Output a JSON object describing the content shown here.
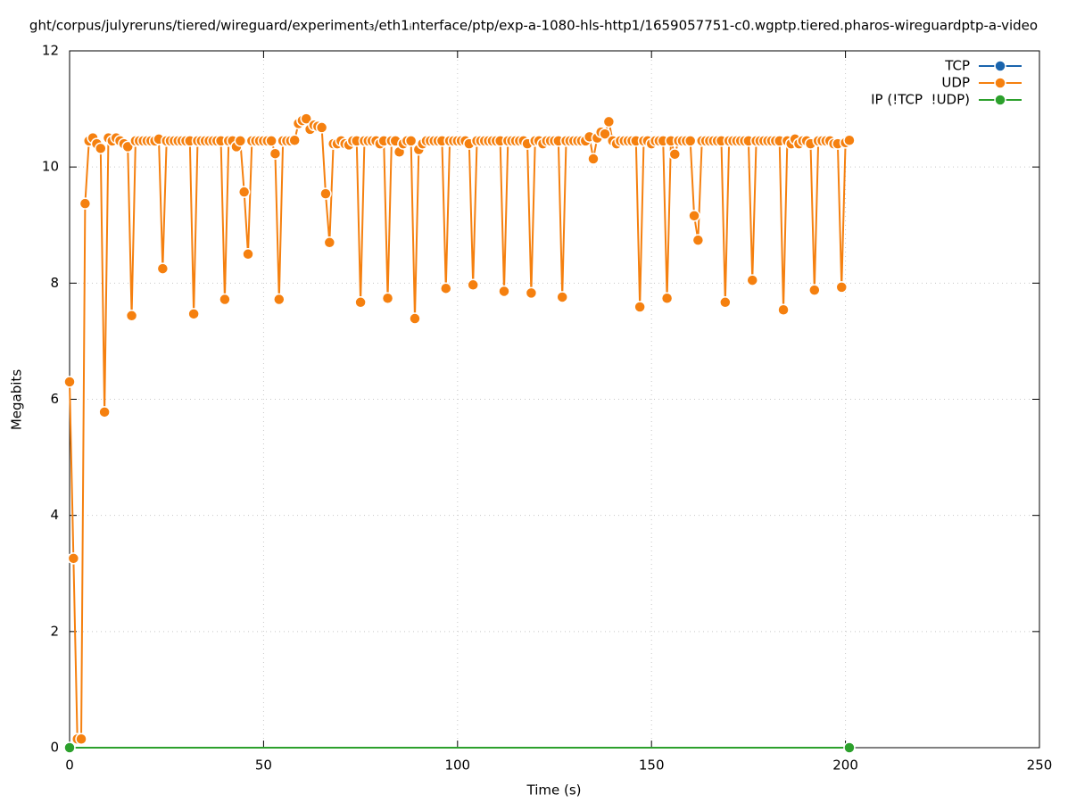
{
  "chart_data": {
    "type": "line",
    "title": "ght/corpus/julyreruns/tiered/wireguard/experiment₃/eth1ᵢnterface/ptp/exp-a-1080-hls-http1/1659057751-c0.wgptp.tiered.pharos-wireguardptp-a-video",
    "x_label": "Time (s)",
    "y_label": "Megabits",
    "xlim": [
      0,
      250
    ],
    "xticks": [
      0,
      50,
      100,
      150,
      200,
      250
    ],
    "ylim": [
      0,
      12
    ],
    "yticks": [
      0,
      2,
      4,
      6,
      8,
      10,
      12
    ],
    "grid": true,
    "legend": "top-right",
    "series": [
      {
        "name": "TCP",
        "color": "#1a64ad",
        "x": [],
        "values": []
      },
      {
        "name": "UDP",
        "color": "#f5800f",
        "x": [
          0,
          1,
          2,
          3,
          4,
          5,
          6,
          7,
          8,
          9,
          10,
          11,
          12,
          13,
          14,
          15,
          16,
          17,
          18,
          19,
          20,
          21,
          22,
          23,
          24,
          25,
          26,
          27,
          28,
          29,
          30,
          31,
          32,
          33,
          34,
          35,
          36,
          37,
          38,
          39,
          40,
          41,
          42,
          43,
          44,
          45,
          46,
          47,
          48,
          49,
          50,
          51,
          52,
          53,
          54,
          55,
          56,
          57,
          58,
          59,
          60,
          61,
          62,
          63,
          64,
          65,
          66,
          67,
          68,
          69,
          70,
          71,
          72,
          73,
          74,
          75,
          76,
          77,
          78,
          79,
          80,
          81,
          82,
          83,
          84,
          85,
          86,
          87,
          88,
          89,
          90,
          91,
          92,
          93,
          94,
          95,
          96,
          97,
          98,
          99,
          100,
          101,
          102,
          103,
          104,
          105,
          106,
          107,
          108,
          109,
          110,
          111,
          112,
          113,
          114,
          115,
          116,
          117,
          118,
          119,
          120,
          121,
          122,
          123,
          124,
          125,
          126,
          127,
          128,
          129,
          130,
          131,
          132,
          133,
          134,
          135,
          136,
          137,
          138,
          139,
          140,
          141,
          142,
          143,
          144,
          145,
          146,
          147,
          148,
          149,
          150,
          151,
          152,
          153,
          154,
          155,
          156,
          157,
          158,
          159,
          160,
          161,
          162,
          163,
          164,
          165,
          166,
          167,
          168,
          169,
          170,
          171,
          172,
          173,
          174,
          175,
          176,
          177,
          178,
          179,
          180,
          181,
          182,
          183,
          184,
          185,
          186,
          187,
          188,
          189,
          190,
          191,
          192,
          193,
          194,
          195,
          196,
          197,
          198,
          199,
          200,
          201
        ],
        "values": [
          6.3,
          3.26,
          0.15,
          0.15,
          9.37,
          10.45,
          10.5,
          10.4,
          10.32,
          5.78,
          10.5,
          10.45,
          10.5,
          10.45,
          10.4,
          10.35,
          7.44,
          10.45,
          10.45,
          10.45,
          10.45,
          10.45,
          10.45,
          10.48,
          8.25,
          10.45,
          10.45,
          10.45,
          10.45,
          10.45,
          10.45,
          10.45,
          7.47,
          10.45,
          10.45,
          10.45,
          10.45,
          10.45,
          10.45,
          10.45,
          7.72,
          10.45,
          10.45,
          10.35,
          10.45,
          9.57,
          8.5,
          10.45,
          10.45,
          10.45,
          10.45,
          10.45,
          10.45,
          10.23,
          7.72,
          10.45,
          10.45,
          10.45,
          10.46,
          10.75,
          10.8,
          10.83,
          10.65,
          10.72,
          10.7,
          10.68,
          9.54,
          8.7,
          10.4,
          10.4,
          10.45,
          10.4,
          10.38,
          10.45,
          10.45,
          7.67,
          10.45,
          10.45,
          10.45,
          10.45,
          10.4,
          10.45,
          7.74,
          10.45,
          10.45,
          10.26,
          10.4,
          10.45,
          10.45,
          7.39,
          10.3,
          10.4,
          10.45,
          10.45,
          10.45,
          10.45,
          10.45,
          7.91,
          10.45,
          10.45,
          10.45,
          10.45,
          10.45,
          10.4,
          7.97,
          10.45,
          10.45,
          10.45,
          10.45,
          10.45,
          10.45,
          10.45,
          7.86,
          10.45,
          10.45,
          10.45,
          10.45,
          10.45,
          10.4,
          7.83,
          10.45,
          10.45,
          10.4,
          10.45,
          10.45,
          10.45,
          10.45,
          7.76,
          10.45,
          10.45,
          10.45,
          10.45,
          10.45,
          10.45,
          10.52,
          10.14,
          10.5,
          10.6,
          10.57,
          10.78,
          10.45,
          10.4,
          10.45,
          10.45,
          10.45,
          10.45,
          10.45,
          7.59,
          10.45,
          10.45,
          10.4,
          10.45,
          10.45,
          10.45,
          7.74,
          10.45,
          10.22,
          10.45,
          10.45,
          10.45,
          10.45,
          9.16,
          8.74,
          10.45,
          10.45,
          10.45,
          10.45,
          10.45,
          10.45,
          7.67,
          10.45,
          10.45,
          10.45,
          10.45,
          10.45,
          10.45,
          8.05,
          10.45,
          10.45,
          10.45,
          10.45,
          10.45,
          10.45,
          10.45,
          7.54,
          10.45,
          10.4,
          10.48,
          10.4,
          10.45,
          10.45,
          10.4,
          7.88,
          10.45,
          10.45,
          10.45,
          10.45,
          10.4,
          10.4,
          7.93,
          10.42,
          10.46
        ]
      },
      {
        "name": "IP (!TCP  !UDP)",
        "color": "#2ca02c",
        "x": [
          0,
          201
        ],
        "values": [
          0,
          0
        ]
      }
    ]
  }
}
